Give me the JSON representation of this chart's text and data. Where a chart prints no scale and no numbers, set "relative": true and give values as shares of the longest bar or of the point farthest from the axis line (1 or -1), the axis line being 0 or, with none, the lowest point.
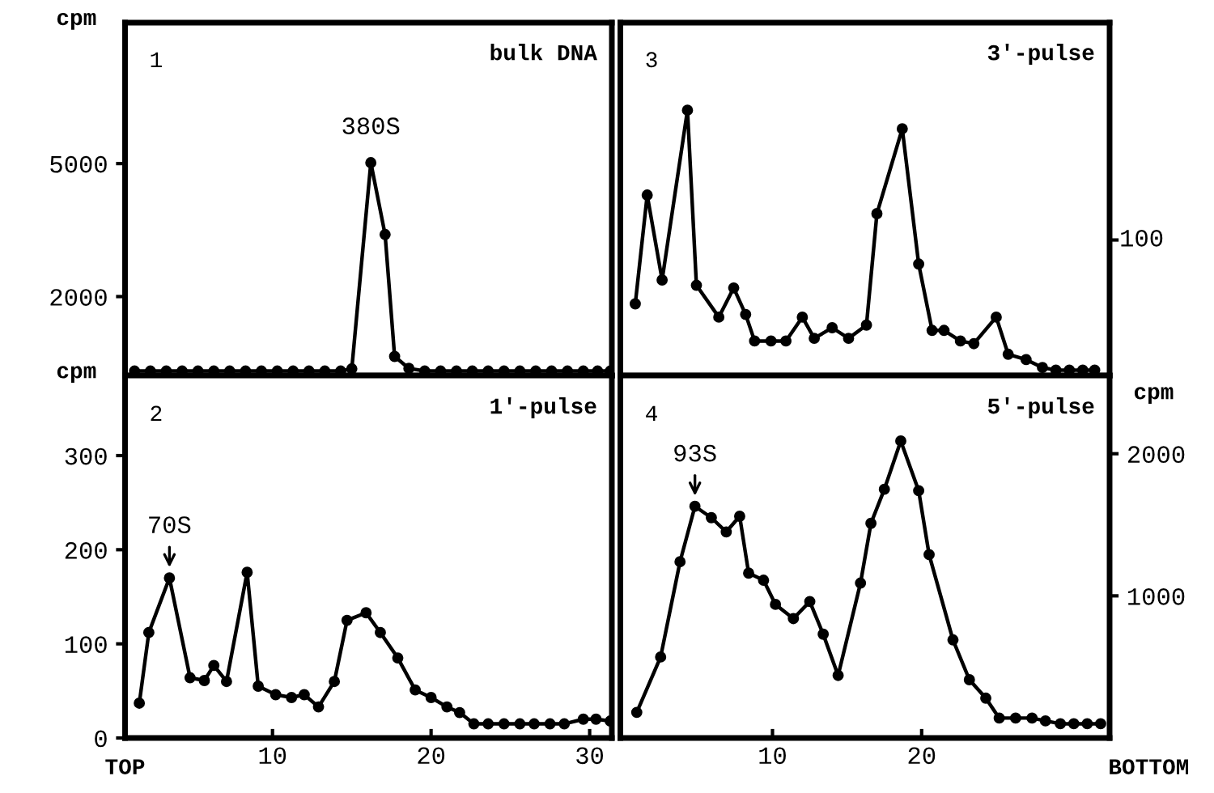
{
  "chart_data": [
    {
      "type": "line",
      "title": "bulk DNA",
      "ylabel": "cpm",
      "annotations": [
        "1",
        {
          "text": "380S",
          "x": 16.2,
          "y": 5024
        }
      ],
      "x": [
        1.3,
        2.3,
        3.3,
        4.3,
        5.3,
        6.3,
        7.3,
        8.3,
        9.3,
        10.3,
        11.3,
        12.3,
        13.3,
        14.3,
        15.0,
        16.2,
        17.1,
        17.7,
        18.6,
        19.6,
        20.6,
        21.6,
        22.6,
        23.6,
        24.6,
        25.6,
        26.6,
        27.6,
        28.6,
        29.6,
        30.5,
        31.3
      ],
      "values": [
        320,
        320,
        320,
        320,
        320,
        320,
        320,
        320,
        320,
        320,
        320,
        320,
        320,
        320,
        370,
        5020,
        3400,
        650,
        380,
        320,
        320,
        320,
        320,
        320,
        320,
        320,
        320,
        320,
        320,
        320,
        320,
        320
      ],
      "color": "#000000",
      "marker": "circle",
      "line_style": "solid",
      "xlim": [
        0.7,
        31.4
      ],
      "ylim": [
        220,
        8180
      ],
      "yticks": [
        2000,
        5000
      ],
      "tick_labels": "y"
    },
    {
      "type": "line",
      "title": "1′-pulse",
      "ylabel": "cpm",
      "xlabel": "TOP",
      "annotations": [
        "2",
        {
          "text": "70S",
          "x": 3.5,
          "y": 170
        }
      ],
      "x": [
        1.6,
        2.2,
        3.5,
        4.8,
        5.7,
        6.3,
        7.1,
        8.4,
        9.1,
        10.2,
        11.2,
        12.0,
        12.9,
        13.9,
        14.7,
        15.9,
        16.8,
        17.9,
        19.0,
        20.0,
        21.0,
        21.8,
        22.7,
        23.6,
        24.6,
        25.6,
        26.5,
        27.5,
        28.4,
        29.6,
        30.4,
        31.3
      ],
      "values": [
        37,
        112,
        170,
        64,
        61,
        77,
        60,
        176,
        55,
        46,
        43,
        46,
        33,
        60,
        125,
        133,
        112,
        85,
        51,
        43,
        33,
        27,
        15,
        15,
        15,
        15,
        15,
        15,
        15,
        20,
        20,
        18
      ],
      "color": "#000000",
      "marker": "circle",
      "line_style": "solid",
      "xlim": [
        0.7,
        31.4
      ],
      "ylim": [
        0,
        385
      ],
      "xticks": [
        10,
        20,
        30
      ],
      "yticks": [
        0,
        100,
        200,
        300
      ]
    },
    {
      "type": "line",
      "title": "3′-pulse",
      "relative": true,
      "annotations": [
        "3",
        "100"
      ],
      "x": [
        0.8,
        1.6,
        2.6,
        4.3,
        4.9,
        6.4,
        7.4,
        8.2,
        8.8,
        9.9,
        10.9,
        12.0,
        12.8,
        14.0,
        15.1,
        16.3,
        17.0,
        18.7,
        19.8,
        20.7,
        21.5,
        22.6,
        23.5,
        25.0,
        25.8,
        27.0,
        28.1,
        29.0,
        29.9,
        30.8,
        31.6
      ],
      "values": [
        0.27,
        0.68,
        0.36,
        1.0,
        0.34,
        0.22,
        0.33,
        0.23,
        0.13,
        0.13,
        0.13,
        0.22,
        0.14,
        0.18,
        0.14,
        0.19,
        0.61,
        0.93,
        0.42,
        0.17,
        0.17,
        0.13,
        0.12,
        0.22,
        0.08,
        0.06,
        0.03,
        0.02,
        0.02,
        0.02,
        0.02
      ],
      "color": "#000000",
      "marker": "circle",
      "line_style": "solid",
      "xlim": [
        -0.2,
        32.6
      ],
      "tick_labels": false
    },
    {
      "type": "line",
      "title": "5′-pulse",
      "ylabel": "cpm",
      "xlabel": "BOTTOM",
      "annotations": [
        "4",
        {
          "text": "93S",
          "x": 4.8,
          "y": 1630
        }
      ],
      "x": [
        0.9,
        2.5,
        3.8,
        4.8,
        5.9,
        6.9,
        7.8,
        8.4,
        9.4,
        10.2,
        11.4,
        12.5,
        13.4,
        14.4,
        15.9,
        16.6,
        17.5,
        18.6,
        19.8,
        20.5,
        22.1,
        23.2,
        24.3,
        25.2,
        26.3,
        27.4,
        28.3,
        29.3,
        30.2,
        31.1,
        32.0
      ],
      "values": [
        180,
        570,
        1240,
        1630,
        1550,
        1450,
        1560,
        1160,
        1110,
        940,
        840,
        960,
        730,
        440,
        1090,
        1510,
        1750,
        2090,
        1740,
        1290,
        690,
        410,
        280,
        140,
        140,
        140,
        120,
        100,
        100,
        100,
        100
      ],
      "color": "#000000",
      "marker": "circle",
      "line_style": "solid",
      "xlim": [
        -0.2,
        32.6
      ],
      "ylim": [
        0,
        2550
      ],
      "xticks": [
        10,
        20
      ],
      "yticks": [
        1000,
        2000
      ]
    }
  ]
}
